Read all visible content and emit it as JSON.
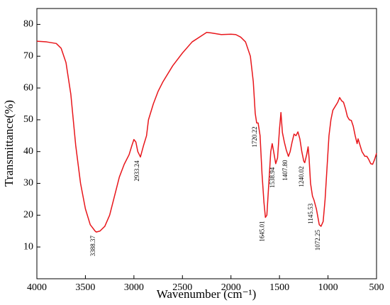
{
  "chart_data": {
    "type": "line",
    "xlabel": "Wavenumber (cm⁻¹)",
    "ylabel": "Transmittance(%)",
    "xlim": [
      4000,
      500
    ],
    "xticks": [
      4000,
      3500,
      3000,
      2500,
      2000,
      1500,
      1000,
      500
    ],
    "ylim": [
      0,
      85
    ],
    "yticks": [
      10,
      20,
      30,
      40,
      50,
      60,
      70,
      80
    ],
    "color": "#e8161b",
    "x": [
      4000,
      3900,
      3800,
      3750,
      3700,
      3650,
      3600,
      3550,
      3500,
      3450,
      3400,
      3388,
      3350,
      3300,
      3250,
      3200,
      3150,
      3100,
      3050,
      3020,
      3000,
      2980,
      2960,
      2933,
      2900,
      2870,
      2850,
      2800,
      2750,
      2700,
      2600,
      2500,
      2400,
      2300,
      2250,
      2200,
      2100,
      2000,
      1950,
      1900,
      1850,
      1800,
      1770,
      1750,
      1735,
      1720,
      1700,
      1680,
      1660,
      1645,
      1630,
      1610,
      1590,
      1575,
      1560,
      1539,
      1520,
      1500,
      1485,
      1470,
      1450,
      1430,
      1408,
      1390,
      1370,
      1350,
      1330,
      1310,
      1290,
      1270,
      1250,
      1240,
      1220,
      1205,
      1195,
      1180,
      1160,
      1145,
      1120,
      1090,
      1072,
      1050,
      1030,
      1010,
      990,
      970,
      950,
      930,
      900,
      880,
      860,
      840,
      820,
      800,
      780,
      760,
      740,
      720,
      700,
      690,
      670,
      650,
      620,
      600,
      580,
      560,
      540,
      520,
      500
    ],
    "values": [
      74.7,
      74.5,
      74,
      72.5,
      68,
      58,
      42,
      30,
      22,
      17,
      15,
      14.7,
      15,
      16.5,
      20,
      26,
      32,
      36,
      39,
      42,
      43.8,
      43,
      40,
      38.3,
      42,
      45,
      50,
      55,
      59,
      62,
      67,
      71,
      74.5,
      76.5,
      77.5,
      77.3,
      76.8,
      76.9,
      76.8,
      76,
      74.5,
      70,
      62,
      52,
      49,
      49,
      45,
      33,
      24,
      19.3,
      20,
      30,
      40,
      42.5,
      40,
      36.2,
      38,
      47,
      52.3,
      46,
      43,
      40.5,
      38.5,
      40,
      43,
      45.5,
      45,
      46.2,
      44,
      40,
      37,
      36.5,
      39,
      41.5,
      38,
      30,
      26,
      24.8,
      22,
      17,
      16.5,
      18,
      25,
      35,
      45,
      50,
      53,
      54,
      55.5,
      57,
      56,
      55.5,
      53.5,
      51,
      50,
      49.8,
      48,
      45,
      42.5,
      44,
      42,
      40,
      38.5,
      38.5,
      37.5,
      36.2,
      36,
      37.5,
      39.5
    ],
    "annotations": [
      {
        "text": "3388.37",
        "x": 3388,
        "y": 14.7
      },
      {
        "text": "2933.24",
        "x": 2933,
        "y": 38.3
      },
      {
        "text": "1720.22",
        "x": 1720,
        "y": 49
      },
      {
        "text": "1645.01",
        "x": 1645,
        "y": 19.3
      },
      {
        "text": "1538.94",
        "x": 1539,
        "y": 36.2
      },
      {
        "text": "1407.80",
        "x": 1408,
        "y": 38.5
      },
      {
        "text": "1240.02",
        "x": 1240,
        "y": 36.5
      },
      {
        "text": "1145.53",
        "x": 1145,
        "y": 24.8
      },
      {
        "text": "1072.25",
        "x": 1072,
        "y": 16.5
      }
    ]
  }
}
